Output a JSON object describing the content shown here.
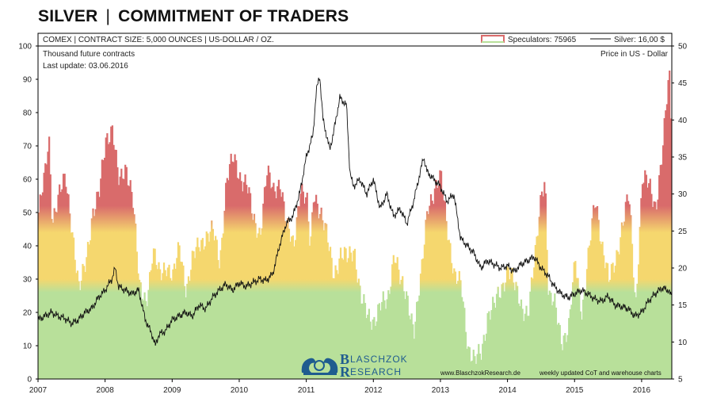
{
  "header": {
    "title_left": "SILVER",
    "title_right": "COMMITMENT OF TRADERS",
    "subtitle": "COMEX | CONTRACT SIZE: 5,000 OUNCES | US-DOLLAR / OZ.",
    "left_axis_label": "Thousand future contracts",
    "right_axis_label": "Price in US - Dollar",
    "last_update": "Last update: 03.06.2016",
    "website": "www.BlaschzokResearch.de",
    "footer_note": "weekly updated CoT and warehouse charts",
    "logo_line1": "LASCHZOK",
    "logo_line2": "ESEARCH",
    "logo_b": "B",
    "logo_r": "R"
  },
  "legend": {
    "speculators": "Speculators: 75965",
    "silver": "Silver: 16,00 $"
  },
  "colors": {
    "red": "#d96b6b",
    "yellow": "#f5d76e",
    "green": "#b8e09a",
    "logo": "#1f5c8f",
    "update_text": "#2a9a4a"
  },
  "chart_data": {
    "type": "area",
    "title": "SILVER | COMMITMENT OF TRADERS",
    "x_ticks": [
      "2007",
      "2008",
      "2009",
      "2010",
      "2011",
      "2012",
      "2013",
      "2014",
      "2015",
      "2016"
    ],
    "y_left": {
      "label": "Thousand future contracts",
      "min": 0,
      "max": 100,
      "ticks": [
        0,
        10,
        20,
        30,
        40,
        50,
        60,
        70,
        80,
        90,
        100
      ]
    },
    "y_right": {
      "label": "Price in US - Dollar",
      "min": 5,
      "max": 50,
      "ticks": [
        5,
        10,
        15,
        20,
        25,
        30,
        35,
        40,
        45,
        50
      ]
    },
    "x_range": [
      2007.0,
      2016.45
    ],
    "series": [
      {
        "name": "Speculators",
        "axis": "left",
        "x": [
          2007.0,
          2007.1,
          2007.15,
          2007.2,
          2007.3,
          2007.4,
          2007.5,
          2007.6,
          2007.7,
          2007.8,
          2007.9,
          2008.0,
          2008.1,
          2008.15,
          2008.2,
          2008.3,
          2008.35,
          2008.4,
          2008.5,
          2008.6,
          2008.65,
          2008.7,
          2008.8,
          2008.9,
          2009.0,
          2009.1,
          2009.2,
          2009.3,
          2009.4,
          2009.5,
          2009.6,
          2009.7,
          2009.8,
          2009.9,
          2010.0,
          2010.1,
          2010.2,
          2010.3,
          2010.4,
          2010.5,
          2010.6,
          2010.7,
          2010.8,
          2010.9,
          2011.0,
          2011.05,
          2011.1,
          2011.2,
          2011.3,
          2011.4,
          2011.5,
          2011.6,
          2011.7,
          2011.8,
          2011.9,
          2012.0,
          2012.1,
          2012.2,
          2012.3,
          2012.4,
          2012.5,
          2012.6,
          2012.7,
          2012.8,
          2012.9,
          2013.0,
          2013.1,
          2013.2,
          2013.3,
          2013.4,
          2013.5,
          2013.6,
          2013.7,
          2013.8,
          2013.9,
          2014.0,
          2014.1,
          2014.2,
          2014.3,
          2014.4,
          2014.5,
          2014.55,
          2014.6,
          2014.7,
          2014.8,
          2014.9,
          2015.0,
          2015.1,
          2015.2,
          2015.3,
          2015.4,
          2015.5,
          2015.6,
          2015.7,
          2015.8,
          2015.9,
          2016.0,
          2016.1,
          2016.2,
          2016.3,
          2016.35,
          2016.4,
          2016.43
        ],
        "values": [
          50,
          62,
          73,
          48,
          55,
          60,
          45,
          26,
          35,
          50,
          55,
          72,
          76,
          66,
          58,
          64,
          60,
          55,
          27,
          24,
          30,
          38,
          31,
          35,
          30,
          40,
          27,
          36,
          41,
          43,
          44,
          35,
          60,
          66,
          61,
          59,
          47,
          44,
          62,
          56,
          60,
          45,
          40,
          58,
          52,
          38,
          57,
          50,
          42,
          32,
          37,
          36,
          40,
          24,
          19,
          18,
          22,
          23,
          39,
          28,
          24,
          15,
          30,
          53,
          56,
          60,
          45,
          30,
          28,
          10,
          5,
          8,
          20,
          22,
          27,
          34,
          27,
          22,
          20,
          36,
          58,
          60,
          24,
          22,
          12,
          14,
          36,
          20,
          37,
          55,
          40,
          29,
          36,
          46,
          55,
          22,
          60,
          58,
          52,
          68,
          80,
          92,
          76
        ],
        "note": "approximate readings of the bar heights"
      },
      {
        "name": "Silver",
        "axis": "right",
        "x": [
          2007.0,
          2007.1,
          2007.2,
          2007.3,
          2007.4,
          2007.5,
          2007.6,
          2007.7,
          2007.8,
          2007.9,
          2008.0,
          2008.1,
          2008.15,
          2008.2,
          2008.3,
          2008.4,
          2008.5,
          2008.6,
          2008.7,
          2008.75,
          2008.8,
          2008.9,
          2009.0,
          2009.1,
          2009.2,
          2009.3,
          2009.4,
          2009.5,
          2009.6,
          2009.7,
          2009.8,
          2009.9,
          2010.0,
          2010.1,
          2010.2,
          2010.3,
          2010.4,
          2010.5,
          2010.6,
          2010.7,
          2010.8,
          2010.9,
          2011.0,
          2011.1,
          2011.15,
          2011.2,
          2011.25,
          2011.3,
          2011.35,
          2011.4,
          2011.5,
          2011.6,
          2011.65,
          2011.7,
          2011.8,
          2011.9,
          2012.0,
          2012.1,
          2012.2,
          2012.3,
          2012.4,
          2012.5,
          2012.6,
          2012.7,
          2012.75,
          2012.8,
          2012.9,
          2013.0,
          2013.1,
          2013.2,
          2013.3,
          2013.4,
          2013.5,
          2013.6,
          2013.7,
          2013.8,
          2013.9,
          2014.0,
          2014.1,
          2014.2,
          2014.3,
          2014.4,
          2014.5,
          2014.6,
          2014.7,
          2014.8,
          2014.9,
          2015.0,
          2015.1,
          2015.2,
          2015.3,
          2015.4,
          2015.5,
          2015.6,
          2015.7,
          2015.8,
          2015.9,
          2016.0,
          2016.1,
          2016.2,
          2016.3,
          2016.4,
          2016.45
        ],
        "values": [
          13,
          13.5,
          14,
          13.5,
          13.2,
          12.5,
          13,
          14,
          14.5,
          16,
          17,
          18.5,
          20,
          17.5,
          17,
          16.5,
          17,
          13,
          11,
          9.5,
          11,
          11.5,
          13,
          13.5,
          14,
          13.5,
          15,
          14.5,
          16,
          17,
          17.8,
          17,
          18,
          17.5,
          18,
          18.5,
          18.3,
          19.2,
          23,
          26,
          27,
          30,
          35,
          38,
          44,
          46,
          40,
          38,
          36,
          38,
          43,
          42,
          33,
          31,
          32,
          30,
          32,
          28,
          30,
          27,
          28,
          26,
          29,
          33,
          35,
          33,
          32,
          31,
          29,
          30,
          24,
          23,
          22,
          20,
          21,
          20.5,
          20,
          20.3,
          19.5,
          20.5,
          21,
          21.5,
          20,
          19,
          17.5,
          16.5,
          16,
          16.5,
          17,
          16.5,
          15.8,
          15.5,
          16.2,
          15,
          14.8,
          14.5,
          13.5,
          14,
          15.5,
          16.5,
          17.3,
          17,
          16
        ]
      }
    ]
  }
}
